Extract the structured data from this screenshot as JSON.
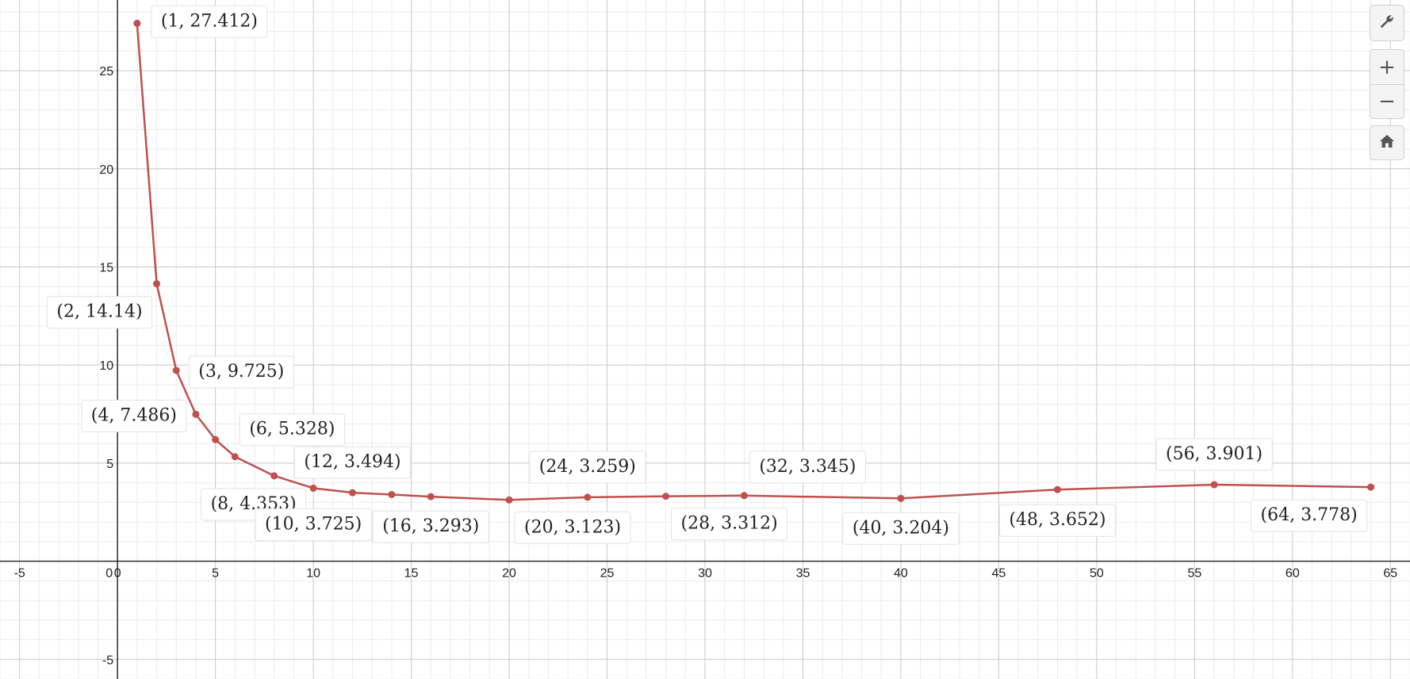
{
  "chart_data": {
    "type": "line",
    "series": [
      {
        "color": "#c0504d",
        "points": [
          {
            "x": 1,
            "y": 27.412,
            "label": "(1, 27.412)"
          },
          {
            "x": 2,
            "y": 14.14,
            "label": "(2, 14.14)"
          },
          {
            "x": 3,
            "y": 9.725,
            "label": "(3, 9.725)"
          },
          {
            "x": 4,
            "y": 7.486,
            "label": "(4, 7.486)"
          },
          {
            "x": 5,
            "y": 6.2,
            "label": ""
          },
          {
            "x": 6,
            "y": 5.328,
            "label": "(6, 5.328)"
          },
          {
            "x": 8,
            "y": 4.353,
            "label": "(8, 4.353)"
          },
          {
            "x": 10,
            "y": 3.725,
            "label": "(10, 3.725)"
          },
          {
            "x": 12,
            "y": 3.494,
            "label": "(12, 3.494)"
          },
          {
            "x": 14,
            "y": 3.4,
            "label": ""
          },
          {
            "x": 16,
            "y": 3.293,
            "label": "(16, 3.293)"
          },
          {
            "x": 20,
            "y": 3.123,
            "label": "(20, 3.123)"
          },
          {
            "x": 24,
            "y": 3.259,
            "label": "(24, 3.259)"
          },
          {
            "x": 28,
            "y": 3.312,
            "label": "(28, 3.312)"
          },
          {
            "x": 32,
            "y": 3.345,
            "label": "(32, 3.345)"
          },
          {
            "x": 40,
            "y": 3.204,
            "label": "(40, 3.204)"
          },
          {
            "x": 48,
            "y": 3.652,
            "label": "(48, 3.652)"
          },
          {
            "x": 56,
            "y": 3.901,
            "label": "(56, 3.901)"
          },
          {
            "x": 64,
            "y": 3.778,
            "label": "(64, 3.778)"
          }
        ]
      }
    ],
    "xlim": [
      -6.0,
      66.0
    ],
    "ylim": [
      -6.0,
      28.6
    ],
    "x_ticks": [
      "-5",
      "0",
      "5",
      "10",
      "15",
      "20",
      "25",
      "30",
      "35",
      "40",
      "45",
      "50",
      "55",
      "60",
      "65"
    ],
    "y_ticks": [
      "-5",
      "5",
      "10",
      "15",
      "20",
      "25"
    ],
    "origin_label": "0",
    "grid": true,
    "title": "",
    "xlabel": "",
    "ylabel": ""
  },
  "toolbar": {
    "settings_icon": "wrench-icon",
    "zoom_in_glyph": "+",
    "zoom_out_glyph": "−",
    "home_icon": "home-icon"
  }
}
